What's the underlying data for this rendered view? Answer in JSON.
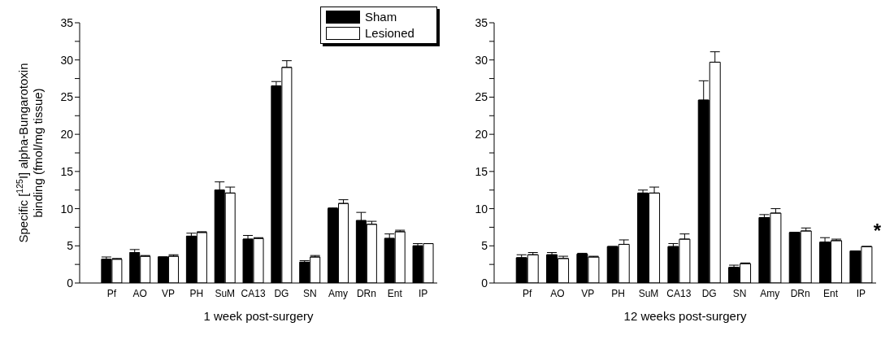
{
  "chart_data": [
    {
      "type": "bar",
      "xlabel": "1 week post-surgery",
      "ylabel": "Specific [$^{125}$I] alpha-Bungarotoxin\nbinding (fmol/mg tissue)",
      "categories": [
        "Pf",
        "AO",
        "VP",
        "PH",
        "SuM",
        "CA13",
        "DG",
        "SN",
        "Amy",
        "DRn",
        "Ent",
        "IP"
      ],
      "series": [
        {
          "name": "Sham",
          "color": "#000000",
          "values": [
            3.2,
            4.1,
            3.5,
            6.3,
            12.5,
            5.9,
            26.5,
            2.8,
            10.0,
            8.4,
            6.0,
            5.0
          ],
          "errors": [
            [
              3.2,
              3.5
            ],
            [
              4.1,
              4.5
            ],
            null,
            [
              6.3,
              6.7
            ],
            [
              12.5,
              13.6
            ],
            [
              5.9,
              6.4
            ],
            [
              26.5,
              27.1
            ],
            [
              2.8,
              3.0
            ],
            [
              10.0,
              10.1
            ],
            [
              8.4,
              9.5
            ],
            [
              6.0,
              6.6
            ],
            [
              5.0,
              5.3
            ]
          ]
        },
        {
          "name": "Lesioned",
          "color": "#ffffff",
          "values": [
            3.2,
            3.6,
            3.6,
            6.8,
            12.1,
            6.0,
            29.0,
            3.5,
            10.7,
            7.9,
            6.9,
            5.3
          ],
          "errors": [
            [
              3.2,
              3.3
            ],
            [
              3.6,
              3.7
            ],
            [
              3.6,
              3.8
            ],
            [
              6.8,
              6.9
            ],
            [
              12.1,
              12.9
            ],
            [
              6.0,
              6.1
            ],
            [
              29.0,
              29.9
            ],
            [
              3.5,
              3.7
            ],
            [
              10.7,
              11.2
            ],
            [
              7.9,
              8.3
            ],
            [
              6.9,
              7.1
            ],
            null
          ]
        }
      ],
      "ylim": [
        0,
        35
      ],
      "yticks": [
        0,
        {
          "value": 2.5,
          "label": null
        },
        5,
        {
          "value": 7.5,
          "label": null
        },
        10,
        {
          "value": 12.5,
          "label": null
        },
        15,
        {
          "value": 17.5,
          "label": null
        },
        20,
        {
          "value": 22.5,
          "label": null
        },
        25,
        {
          "value": 27.5,
          "label": null
        },
        30,
        {
          "value": 32.5,
          "label": null
        },
        35
      ],
      "grid": false,
      "legend": "top right"
    },
    {
      "type": "bar",
      "xlabel": "12 weeks post-surgery",
      "categories": [
        "Pf",
        "AO",
        "VP",
        "PH",
        "SuM",
        "CA13",
        "DG",
        "SN",
        "Amy",
        "DRn",
        "Ent",
        "IP"
      ],
      "series": [
        {
          "color": "#000000",
          "values": [
            3.4,
            3.8,
            3.9,
            4.9,
            12.1,
            4.9,
            24.6,
            2.1,
            8.8,
            6.8,
            5.5,
            4.3
          ],
          "errors": [
            [
              3.4,
              3.8
            ],
            [
              3.8,
              4.1
            ],
            [
              3.9,
              4.0
            ],
            null,
            [
              12.1,
              12.5
            ],
            [
              4.9,
              5.3
            ],
            [
              24.6,
              27.2
            ],
            [
              2.1,
              2.4
            ],
            [
              8.8,
              9.2
            ],
            null,
            [
              5.5,
              6.1
            ],
            null
          ]
        },
        {
          "color": "#ffffff",
          "values": [
            3.8,
            3.3,
            3.5,
            5.2,
            12.1,
            5.9,
            29.7,
            2.6,
            9.4,
            7.0,
            5.7,
            4.9
          ],
          "errors": [
            [
              3.8,
              4.1
            ],
            [
              3.3,
              3.6
            ],
            [
              3.5,
              3.6
            ],
            [
              5.2,
              5.8
            ],
            [
              12.1,
              12.9
            ],
            [
              5.9,
              6.6
            ],
            [
              29.7,
              31.1
            ],
            [
              2.6,
              2.7
            ],
            [
              9.4,
              10.0
            ],
            [
              7.0,
              7.4
            ],
            [
              5.7,
              5.9
            ],
            null
          ]
        }
      ],
      "ylim": [
        0,
        35
      ],
      "yticks": [
        0,
        {
          "value": 2.5,
          "label": null
        },
        5,
        {
          "value": 7.5,
          "label": null
        },
        10,
        {
          "value": 12.5,
          "label": null
        },
        15,
        {
          "value": 17.5,
          "label": null
        },
        20,
        {
          "value": 22.5,
          "label": null
        },
        25,
        {
          "value": 27.5,
          "label": null
        },
        30,
        {
          "value": 32.5,
          "label": null
        },
        35
      ],
      "annotations": [
        "*"
      ],
      "grid": false,
      "legend": false
    }
  ]
}
